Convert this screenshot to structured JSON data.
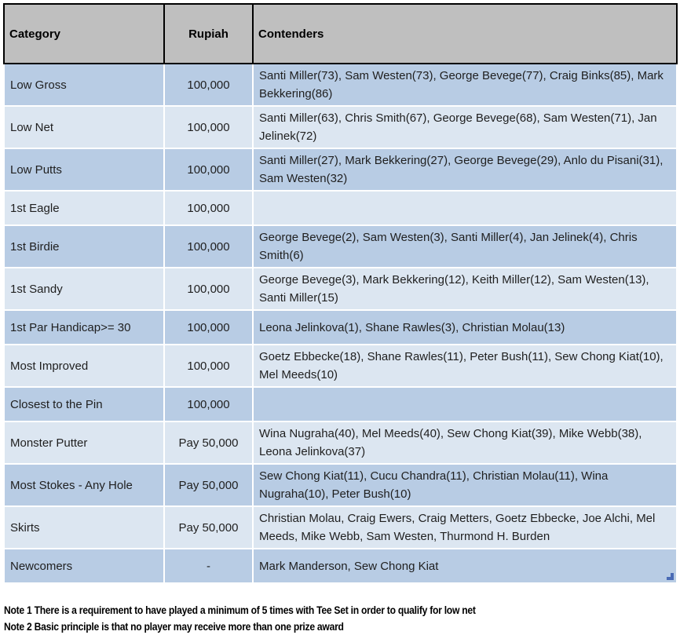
{
  "table": {
    "columns": [
      {
        "key": "category",
        "label": "Category"
      },
      {
        "key": "rupiah",
        "label": "Rupiah"
      },
      {
        "key": "contenders",
        "label": "Contenders"
      }
    ],
    "rows": [
      {
        "category": "Low Gross",
        "rupiah": "100,000",
        "contenders": "Santi Miller(73), Sam Westen(73), George Bevege(77), Craig Binks(85), Mark Bekkering(86)"
      },
      {
        "category": "Low Net",
        "rupiah": "100,000",
        "contenders": "Santi Miller(63), Chris Smith(67), George Bevege(68), Sam Westen(71), Jan Jelinek(72)"
      },
      {
        "category": "Low Putts",
        "rupiah": "100,000",
        "contenders": "Santi Miller(27), Mark Bekkering(27), George Bevege(29), Anlo du Pisani(31), Sam Westen(32)"
      },
      {
        "category": "1st Eagle",
        "rupiah": "100,000",
        "contenders": ""
      },
      {
        "category": "1st Birdie",
        "rupiah": "100,000",
        "contenders": "George Bevege(2), Sam Westen(3), Santi Miller(4), Jan Jelinek(4), Chris Smith(6)"
      },
      {
        "category": "1st Sandy",
        "rupiah": "100,000",
        "contenders": "George Bevege(3), Mark Bekkering(12), Keith Miller(12), Sam Westen(13), Santi Miller(15)"
      },
      {
        "category": "1st Par Handicap>= 30",
        "rupiah": "100,000",
        "contenders": "Leona Jelinkova(1), Shane Rawles(3), Christian Molau(13)"
      },
      {
        "category": "Most Improved",
        "rupiah": "100,000",
        "contenders": "Goetz Ebbecke(18), Shane Rawles(11), Peter Bush(11), Sew Chong Kiat(10), Mel Meeds(10)"
      },
      {
        "category": "Closest to the Pin",
        "rupiah": "100,000",
        "contenders": ""
      },
      {
        "category": "Monster Putter",
        "rupiah": "Pay 50,000",
        "contenders": "Wina Nugraha(40), Mel Meeds(40), Sew Chong Kiat(39), Mike Webb(38), Leona Jelinkova(37)"
      },
      {
        "category": "Most Stokes - Any Hole",
        "rupiah": "Pay 50,000",
        "contenders": "Sew Chong Kiat(11), Cucu Chandra(11), Christian Molau(11), Wina Nugraha(10), Peter Bush(10)"
      },
      {
        "category": "Skirts",
        "rupiah": "Pay 50,000",
        "contenders": "Christian Molau, Craig Ewers, Craig Metters, Goetz Ebbecke, Joe Alchi, Mel Meeds, Mike Webb, Sam Westen, Thurmond H. Burden"
      },
      {
        "category": "Newcomers",
        "rupiah": "-",
        "contenders": "Mark Manderson, Sew Chong Kiat"
      }
    ]
  },
  "notes": [
    "Note 1 There is a requirement to have played a minimum of 5 times with Tee Set in order to qualify for low net",
    "Note 2 Basic principle is that no player may receive more than one prize award"
  ],
  "colors": {
    "header_bg": "#bfbfbf",
    "row_odd": "#b8cce4",
    "row_even": "#dce6f1",
    "border_black": "#000000",
    "cell_sep": "#ffffff",
    "handle": "#4a6bb5"
  }
}
